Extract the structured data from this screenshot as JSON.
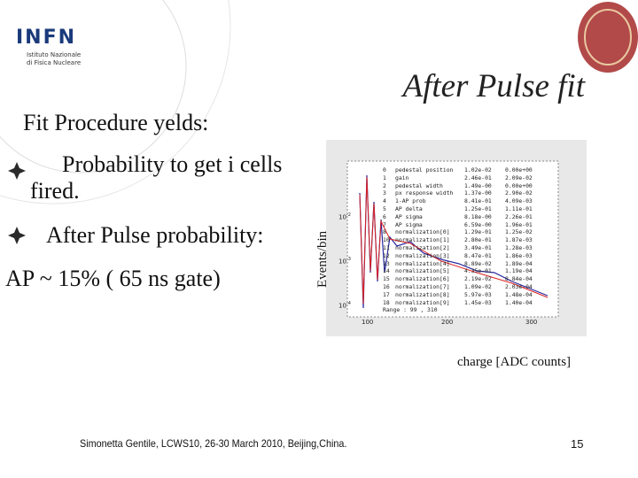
{
  "header": {
    "logo_text": "INFN",
    "logo_subtitle": [
      "Istituto Nazionale",
      "di Fisica Nucleare"
    ],
    "title": "After Pulse fit"
  },
  "body": {
    "intro": "Fit Procedure yelds:",
    "bullets": [
      "Probability to get i cells fired.",
      "After Pulse probability:"
    ],
    "result": "AP ~ 15%  ( 65 ns gate)"
  },
  "plot": {
    "y_label": "Events/bin",
    "x_label": "charge [ADC counts]",
    "x_ticks": [
      "100",
      "200",
      "300"
    ],
    "y_ticks": [
      {
        "base": "10",
        "exp": "-2"
      },
      {
        "base": "10",
        "exp": "-3"
      },
      {
        "base": "10",
        "exp": "-4"
      }
    ],
    "fit_table": [
      [
        "0",
        "pedestal position",
        "1.02e-02",
        "0.00e+00"
      ],
      [
        "1",
        "gain",
        "2.46e-01",
        "2.09e-02"
      ],
      [
        "2",
        "pedestal width",
        "1.49e-00",
        "0.00e+00"
      ],
      [
        "3",
        "px response width",
        "1.37e-00",
        "2.90e-02"
      ],
      [
        "4",
        "1-AP prob",
        "8.41e-01",
        "4.09e-03"
      ],
      [
        "5",
        "AP delta",
        "1.25e-01",
        "1.11e-01"
      ],
      [
        "6",
        "AP sigma",
        "8.18e-00",
        "2.26e-01"
      ],
      [
        "7",
        "AP sigma",
        "6.59e-00",
        "1.96e-01"
      ],
      [
        "8",
        "normalization[0]",
        "1.29e-01",
        "1.25e-02"
      ],
      [
        "10",
        "normalization[1]",
        "2.80e-01",
        "1.87e-03"
      ],
      [
        "11",
        "normalization[2]",
        "3.49e-01",
        "1.28e-03"
      ],
      [
        "12",
        "normalization[3]",
        "8.47e-01",
        "1.86e-03"
      ],
      [
        "13",
        "normalization[4]",
        "8.89e-02",
        "1.89e-04"
      ],
      [
        "14",
        "normalization[5]",
        "4.35e-01",
        "1.19e-04"
      ],
      [
        "15",
        "normalization[6]",
        "2.19e-02",
        "8.84e-04"
      ],
      [
        "16",
        "normalization[7]",
        "1.09e-02",
        "2.03e-04"
      ],
      [
        "17",
        "normalization[8]",
        "5.97e-03",
        "1.48e-04"
      ],
      [
        "18",
        "normalization[9]",
        "1.45e-03",
        "1.40e-04"
      ]
    ],
    "range_label": "Range : 99 , 310"
  },
  "footer": {
    "credit": "Simonetta Gentile, LCWS10, 26-30 March 2010, Beijing,China.",
    "page": "15"
  }
}
